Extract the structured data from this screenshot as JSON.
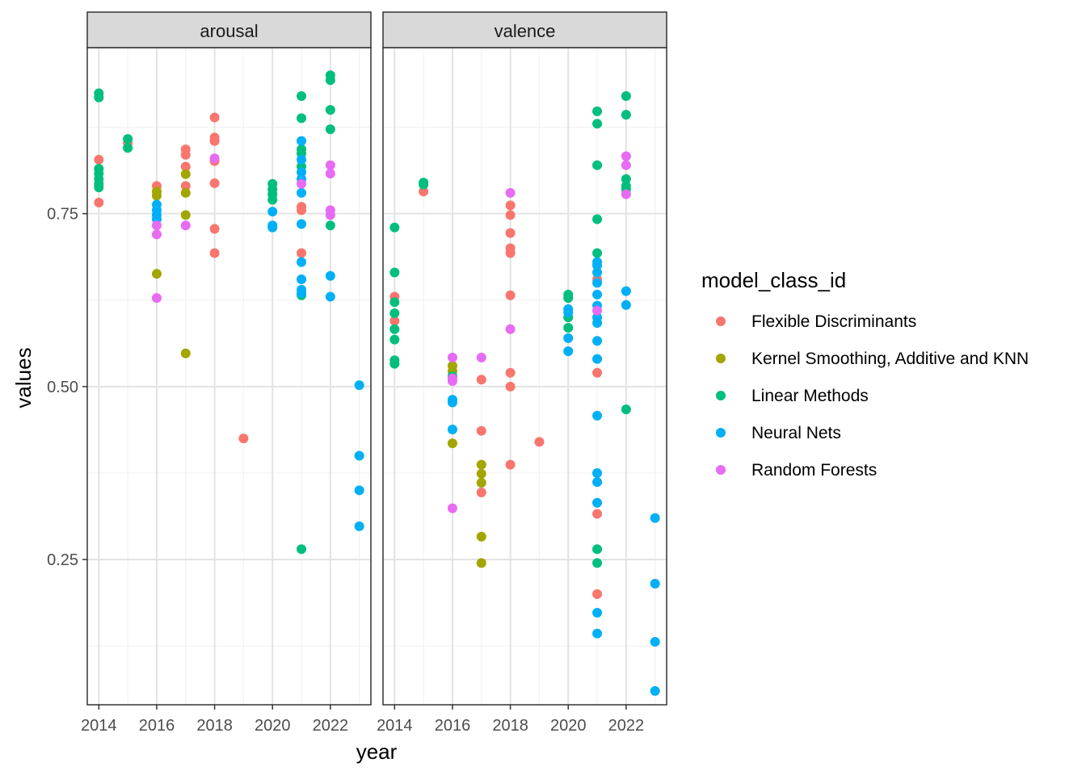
{
  "chart_data": {
    "type": "scatter",
    "xlabel": "year",
    "ylabel": "values",
    "xlim": [
      2013.6,
      2023.4
    ],
    "ylim": [
      0.04,
      0.99
    ],
    "x_ticks": [
      2014,
      2016,
      2018,
      2020,
      2022
    ],
    "x_tick_labels": [
      "2014",
      "2016",
      "2018",
      "2020",
      "2022"
    ],
    "y_ticks": [
      0.25,
      0.5,
      0.75
    ],
    "y_tick_labels": [
      "0.25",
      "0.50",
      "0.75"
    ],
    "grid": true,
    "legend": {
      "title": "model_class_id",
      "position": "right",
      "entries": [
        {
          "name": "Flexible Discriminants",
          "color": "#F8766D"
        },
        {
          "name": "Kernel Smoothing, Additive and KNN",
          "color": "#A3A500"
        },
        {
          "name": "Linear Methods",
          "color": "#00BF7D"
        },
        {
          "name": "Neural Nets",
          "color": "#00B0F6"
        },
        {
          "name": "Random Forests",
          "color": "#E76BF3"
        }
      ]
    },
    "facets": [
      {
        "label": "arousal",
        "series": [
          {
            "name": "Flexible Discriminants",
            "points": [
              [
                2014,
                0.828
              ],
              [
                2014,
                0.766
              ],
              [
                2015,
                0.852
              ],
              [
                2016,
                0.79
              ],
              [
                2017,
                0.843
              ],
              [
                2017,
                0.835
              ],
              [
                2017,
                0.818
              ],
              [
                2017,
                0.79
              ],
              [
                2018,
                0.889
              ],
              [
                2018,
                0.86
              ],
              [
                2018,
                0.855
              ],
              [
                2018,
                0.826
              ],
              [
                2018,
                0.794
              ],
              [
                2018,
                0.728
              ],
              [
                2018,
                0.693
              ],
              [
                2019,
                0.425
              ],
              [
                2021,
                0.76
              ],
              [
                2021,
                0.755
              ],
              [
                2021,
                0.693
              ]
            ]
          },
          {
            "name": "Kernel Smoothing, Additive and KNN",
            "points": [
              [
                2016,
                0.782
              ],
              [
                2016,
                0.776
              ],
              [
                2016,
                0.663
              ],
              [
                2017,
                0.807
              ],
              [
                2017,
                0.78
              ],
              [
                2017,
                0.748
              ],
              [
                2017,
                0.548
              ]
            ]
          },
          {
            "name": "Linear Methods",
            "points": [
              [
                2014,
                0.924
              ],
              [
                2014,
                0.918
              ],
              [
                2014,
                0.815
              ],
              [
                2014,
                0.808
              ],
              [
                2014,
                0.8
              ],
              [
                2014,
                0.793
              ],
              [
                2014,
                0.788
              ],
              [
                2015,
                0.858
              ],
              [
                2015,
                0.845
              ],
              [
                2020,
                0.793
              ],
              [
                2020,
                0.785
              ],
              [
                2020,
                0.778
              ],
              [
                2020,
                0.77
              ],
              [
                2021,
                0.92
              ],
              [
                2021,
                0.888
              ],
              [
                2021,
                0.843
              ],
              [
                2021,
                0.837
              ],
              [
                2021,
                0.818
              ],
              [
                2021,
                0.632
              ],
              [
                2021,
                0.265
              ],
              [
                2022,
                0.95
              ],
              [
                2022,
                0.943
              ],
              [
                2022,
                0.9
              ],
              [
                2022,
                0.872
              ],
              [
                2022,
                0.733
              ]
            ]
          },
          {
            "name": "Neural Nets",
            "points": [
              [
                2016,
                0.763
              ],
              [
                2016,
                0.755
              ],
              [
                2016,
                0.748
              ],
              [
                2016,
                0.742
              ],
              [
                2020,
                0.753
              ],
              [
                2020,
                0.733
              ],
              [
                2020,
                0.73
              ],
              [
                2021,
                0.855
              ],
              [
                2021,
                0.828
              ],
              [
                2021,
                0.81
              ],
              [
                2021,
                0.8
              ],
              [
                2021,
                0.78
              ],
              [
                2021,
                0.735
              ],
              [
                2021,
                0.68
              ],
              [
                2021,
                0.655
              ],
              [
                2021,
                0.64
              ],
              [
                2021,
                0.635
              ],
              [
                2022,
                0.66
              ],
              [
                2022,
                0.63
              ],
              [
                2023,
                0.502
              ],
              [
                2023,
                0.4
              ],
              [
                2023,
                0.35
              ],
              [
                2023,
                0.298
              ]
            ]
          },
          {
            "name": "Random Forests",
            "points": [
              [
                2016,
                0.733
              ],
              [
                2016,
                0.72
              ],
              [
                2016,
                0.628
              ],
              [
                2017,
                0.733
              ],
              [
                2018,
                0.83
              ],
              [
                2021,
                0.793
              ],
              [
                2022,
                0.82
              ],
              [
                2022,
                0.808
              ],
              [
                2022,
                0.755
              ],
              [
                2022,
                0.748
              ]
            ]
          }
        ]
      },
      {
        "label": "valence",
        "series": [
          {
            "name": "Flexible Discriminants",
            "points": [
              [
                2014,
                0.63
              ],
              [
                2014,
                0.595
              ],
              [
                2015,
                0.782
              ],
              [
                2017,
                0.51
              ],
              [
                2017,
                0.436
              ],
              [
                2017,
                0.347
              ],
              [
                2018,
                0.762
              ],
              [
                2018,
                0.748
              ],
              [
                2018,
                0.722
              ],
              [
                2018,
                0.7
              ],
              [
                2018,
                0.693
              ],
              [
                2018,
                0.632
              ],
              [
                2018,
                0.52
              ],
              [
                2018,
                0.5
              ],
              [
                2018,
                0.387
              ],
              [
                2019,
                0.42
              ],
              [
                2021,
                0.655
              ],
              [
                2021,
                0.52
              ],
              [
                2021,
                0.316
              ],
              [
                2021,
                0.2
              ]
            ]
          },
          {
            "name": "Kernel Smoothing, Additive and KNN",
            "points": [
              [
                2016,
                0.53
              ],
              [
                2016,
                0.522
              ],
              [
                2016,
                0.418
              ],
              [
                2017,
                0.387
              ],
              [
                2017,
                0.374
              ],
              [
                2017,
                0.361
              ],
              [
                2017,
                0.283
              ],
              [
                2017,
                0.245
              ]
            ]
          },
          {
            "name": "Linear Methods",
            "points": [
              [
                2014,
                0.73
              ],
              [
                2014,
                0.665
              ],
              [
                2014,
                0.622
              ],
              [
                2014,
                0.606
              ],
              [
                2014,
                0.583
              ],
              [
                2014,
                0.568
              ],
              [
                2014,
                0.538
              ],
              [
                2014,
                0.533
              ],
              [
                2015,
                0.795
              ],
              [
                2015,
                0.792
              ],
              [
                2016,
                0.515
              ],
              [
                2020,
                0.633
              ],
              [
                2020,
                0.628
              ],
              [
                2020,
                0.6
              ],
              [
                2020,
                0.585
              ],
              [
                2021,
                0.898
              ],
              [
                2021,
                0.88
              ],
              [
                2021,
                0.82
              ],
              [
                2021,
                0.742
              ],
              [
                2021,
                0.693
              ],
              [
                2021,
                0.265
              ],
              [
                2021,
                0.245
              ],
              [
                2022,
                0.92
              ],
              [
                2022,
                0.893
              ],
              [
                2022,
                0.8
              ],
              [
                2022,
                0.79
              ],
              [
                2022,
                0.785
              ],
              [
                2022,
                0.467
              ]
            ]
          },
          {
            "name": "Neural Nets",
            "points": [
              [
                2016,
                0.481
              ],
              [
                2016,
                0.477
              ],
              [
                2016,
                0.438
              ],
              [
                2020,
                0.612
              ],
              [
                2020,
                0.607
              ],
              [
                2020,
                0.57
              ],
              [
                2020,
                0.551
              ],
              [
                2021,
                0.68
              ],
              [
                2021,
                0.675
              ],
              [
                2021,
                0.665
              ],
              [
                2021,
                0.65
              ],
              [
                2021,
                0.633
              ],
              [
                2021,
                0.617
              ],
              [
                2021,
                0.6
              ],
              [
                2021,
                0.592
              ],
              [
                2021,
                0.566
              ],
              [
                2021,
                0.54
              ],
              [
                2021,
                0.458
              ],
              [
                2021,
                0.375
              ],
              [
                2021,
                0.362
              ],
              [
                2021,
                0.332
              ],
              [
                2021,
                0.173
              ],
              [
                2021,
                0.143
              ],
              [
                2022,
                0.638
              ],
              [
                2022,
                0.618
              ],
              [
                2023,
                0.31
              ],
              [
                2023,
                0.215
              ],
              [
                2023,
                0.131
              ],
              [
                2023,
                0.06
              ]
            ]
          },
          {
            "name": "Random Forests",
            "points": [
              [
                2016,
                0.542
              ],
              [
                2016,
                0.512
              ],
              [
                2016,
                0.508
              ],
              [
                2016,
                0.324
              ],
              [
                2017,
                0.542
              ],
              [
                2018,
                0.78
              ],
              [
                2018,
                0.583
              ],
              [
                2021,
                0.61
              ],
              [
                2022,
                0.833
              ],
              [
                2022,
                0.82
              ],
              [
                2022,
                0.778
              ]
            ]
          }
        ]
      }
    ]
  }
}
